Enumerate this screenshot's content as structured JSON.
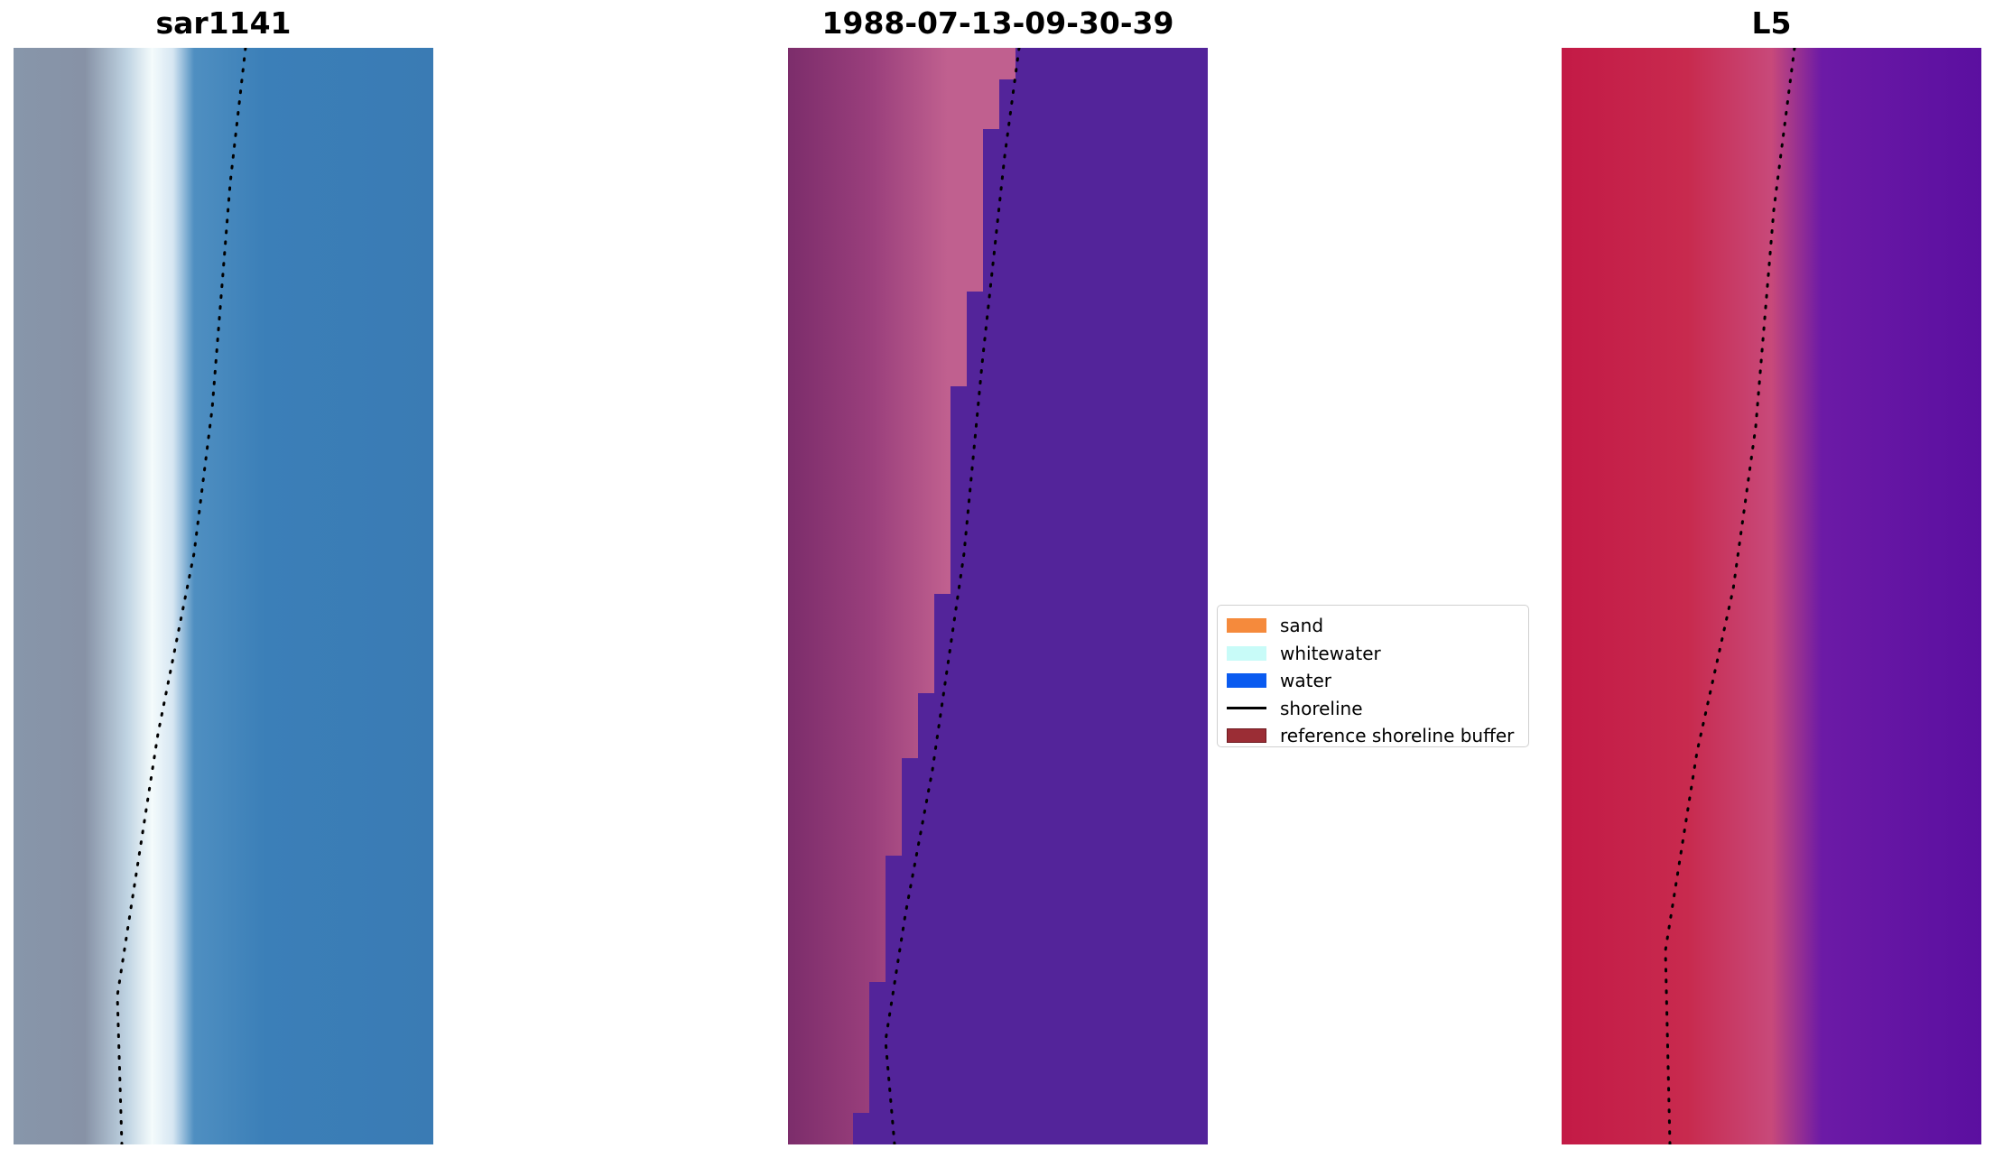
{
  "panels": [
    {
      "title": "sar1141",
      "kind": "rgb",
      "gradient": [
        "#8796aa",
        "#8792a6",
        "#bfd3e2",
        "#f4fbfc",
        "#d6e6f2",
        "#4f8fc1",
        "#3b7fb8",
        "#3a7bb4"
      ],
      "shoreline_color": "#000000"
    },
    {
      "title": "1988-07-13-09-30-39",
      "kind": "classified",
      "gradient": [
        "#7c2d6b",
        "#9a3f7c",
        "#c0608f",
        "#53249a"
      ],
      "shoreline_color": "#000000"
    },
    {
      "title": "L5",
      "kind": "index",
      "gradient": [
        "#c31a46",
        "#c82a4e",
        "#c8497a",
        "#6c1aa6",
        "#5b0fa0"
      ],
      "shoreline_color": "#000000"
    }
  ],
  "legend": {
    "items": [
      {
        "label": "sand",
        "type": "patch",
        "color": "#f58a3c"
      },
      {
        "label": "whitewater",
        "type": "patch",
        "color": "#c8fbf8"
      },
      {
        "label": "water",
        "type": "patch",
        "color": "#0a5bf0"
      },
      {
        "label": "shoreline",
        "type": "line",
        "color": "#000000"
      },
      {
        "label": "reference shoreline buffer",
        "type": "patch",
        "color": "#9b2d35",
        "edge": "#6e1a20"
      }
    ]
  }
}
